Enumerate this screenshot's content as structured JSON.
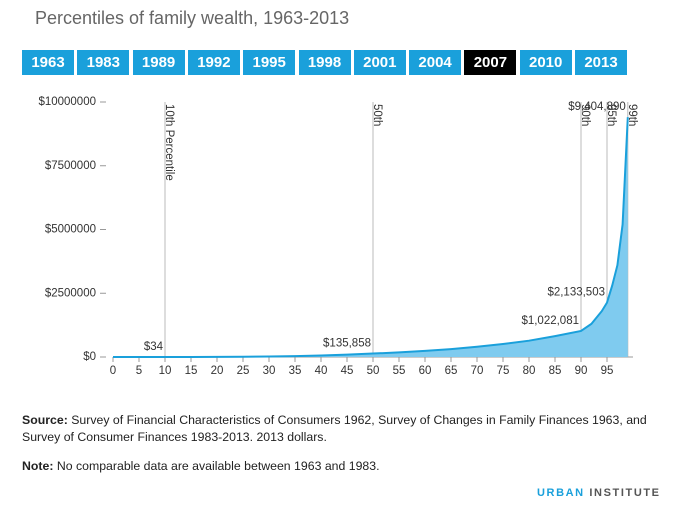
{
  "chart_data": {
    "type": "area",
    "title": "Percentiles of family wealth, 1963-2013",
    "buttons": [
      "1963",
      "1983",
      "1989",
      "1992",
      "1995",
      "1998",
      "2001",
      "2004",
      "2007",
      "2010",
      "2013"
    ],
    "selected": "2007",
    "x": [
      0,
      5,
      10,
      15,
      20,
      25,
      30,
      35,
      40,
      45,
      50,
      55,
      60,
      65,
      70,
      75,
      80,
      85,
      90,
      92,
      94,
      95,
      96,
      97,
      98,
      99
    ],
    "values": [
      0,
      0,
      34,
      2000,
      6000,
      12000,
      22000,
      36000,
      60000,
      92000,
      135858,
      180000,
      240000,
      310000,
      400000,
      510000,
      640000,
      820000,
      1022081,
      1300000,
      1800000,
      2133503,
      2800000,
      3600000,
      5200000,
      9404890
    ],
    "value_labels": [
      null,
      null,
      "$34",
      null,
      null,
      null,
      null,
      null,
      null,
      null,
      "$135,858",
      null,
      null,
      null,
      null,
      null,
      null,
      null,
      "$1,022,081",
      null,
      null,
      "$2,133,503",
      null,
      null,
      null,
      "$9,404,890"
    ],
    "color": "#1aa0db",
    "fill": "#7fcbef",
    "xlim": [
      0,
      100
    ],
    "ylim": [
      0,
      10000000
    ],
    "xticks": [
      0,
      5,
      10,
      15,
      20,
      25,
      30,
      35,
      40,
      45,
      50,
      55,
      60,
      65,
      70,
      75,
      80,
      85,
      90,
      95
    ],
    "yticks": [
      {
        "value": 0,
        "label": "$0"
      },
      {
        "value": 2500000,
        "label": "$2500000"
      },
      {
        "value": 5000000,
        "label": "$5000000"
      },
      {
        "value": 7500000,
        "label": "$7500000"
      },
      {
        "value": 10000000,
        "label": "$10000000"
      }
    ],
    "reference_lines": [
      {
        "x": 10,
        "label": "10th Percentile"
      },
      {
        "x": 50,
        "label": "50th"
      },
      {
        "x": 90,
        "label": "90th"
      },
      {
        "x": 95,
        "label": "95th"
      },
      {
        "x": 99,
        "label": "99th"
      }
    ],
    "source": {
      "label": "Source:",
      "text": " Survey of Financial Characteristics of Consumers 1962, Survey of Changes in Family Finances 1963, and Survey of Consumer Finances 1983-2013. 2013 dollars."
    },
    "note": {
      "label": "Note:",
      "text": " No comparable data are available between 1963 and 1983."
    },
    "brand": [
      "URBAN",
      "INSTITUTE"
    ]
  }
}
